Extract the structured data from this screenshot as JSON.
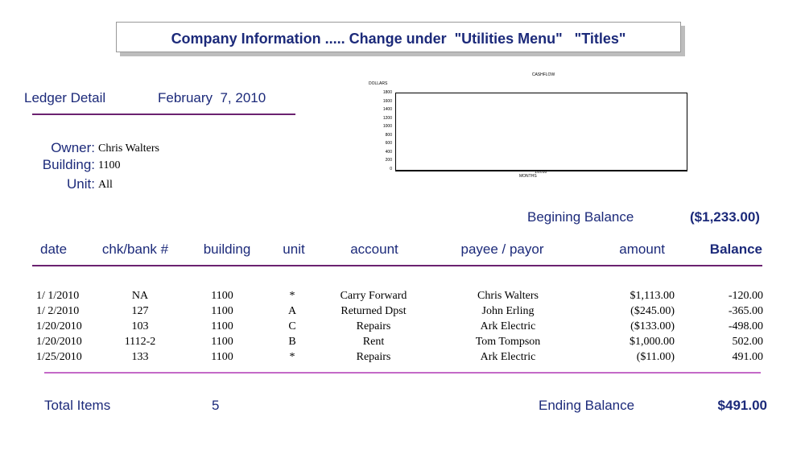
{
  "header": {
    "title": "Company Information ..... Change under  \"Utilities Menu\"   \"Titles\""
  },
  "report": {
    "name": "Ledger Detail",
    "date": "February  7, 2010"
  },
  "info": [
    {
      "label": "Owner:",
      "value": "Chris Walters"
    },
    {
      "label": "Building:",
      "value": "1100"
    },
    {
      "label": "Unit:",
      "value": "All"
    }
  ],
  "chart": {
    "title": "CASHFLOW",
    "y_label": "DOLLARS",
    "x_label": "MONTHS",
    "x_tick": "1/2010",
    "y_ticks": [
      "1800",
      "1600",
      "1400",
      "1200",
      "1000",
      "800",
      "600",
      "400",
      "200",
      "0"
    ]
  },
  "beginning": {
    "label": "Begining Balance",
    "value": "($1,233.00)"
  },
  "ledger": {
    "columns": [
      "date",
      "chk/bank #",
      "building",
      "unit",
      "account",
      "payee / payor",
      "amount",
      "Balance"
    ],
    "rows": [
      [
        "1/ 1/2010",
        "NA",
        "1100",
        "*",
        "Carry Forward",
        "Chris Walters",
        "$1,113.00",
        "-120.00"
      ],
      [
        "1/ 2/2010",
        "127",
        "1100",
        "A",
        "Returned Dpst",
        "John Erling",
        "($245.00)",
        "-365.00"
      ],
      [
        "1/20/2010",
        "103",
        "1100",
        "C",
        "Repairs",
        "Ark Electric",
        "($133.00)",
        "-498.00"
      ],
      [
        "1/20/2010",
        "1112-2",
        "1100",
        "B",
        "Rent",
        "Tom Tompson",
        "$1,000.00",
        "502.00"
      ],
      [
        "1/25/2010",
        "133",
        "1100",
        "*",
        "Repairs",
        "Ark Electric",
        "($11.00)",
        "491.00"
      ]
    ]
  },
  "totals": {
    "items_label": "Total Items",
    "items_value": "5",
    "ending_label": "Ending Balance",
    "ending_value": "$491.00"
  }
}
